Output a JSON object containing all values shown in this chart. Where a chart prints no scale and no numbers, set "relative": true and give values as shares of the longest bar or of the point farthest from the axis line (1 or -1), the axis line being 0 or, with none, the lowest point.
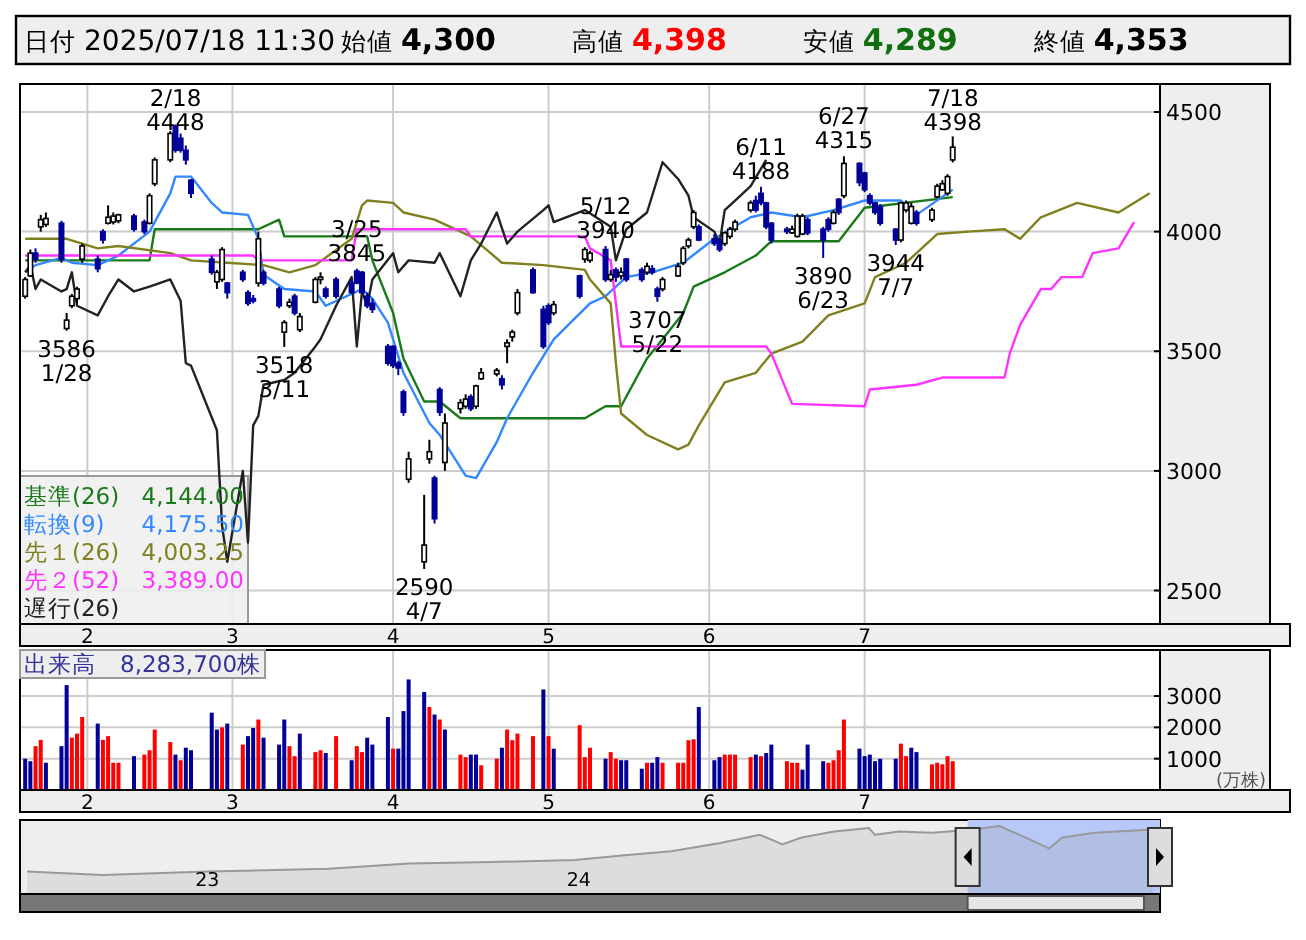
{
  "chart_data": [
    {
      "type": "other",
      "annotations": [
        "日付",
        "2025/07/18 11:30",
        "始値",
        "4,300",
        "高値",
        "4,398",
        "安値",
        "4,289",
        "終値",
        "4,353"
      ],
      "colors": [
        "#000000",
        "#000000",
        "#000000",
        "#000000",
        "#000000",
        "#ff0000",
        "#000000",
        "#107010",
        "#000000",
        "#000000"
      ]
    },
    {
      "type": "candlestick",
      "xlim": [
        "2025-01-19",
        "2025-08-27"
      ],
      "ylim": [
        2360,
        4617
      ],
      "grid": true,
      "legend": "bottom left",
      "xticks": [
        {
          "value": "2025-02-01",
          "label": "2"
        },
        {
          "value": "2025-03-01",
          "label": "3"
        },
        {
          "value": "2025-04-01",
          "label": "4"
        },
        {
          "value": "2025-05-01",
          "label": "5"
        },
        {
          "value": "2025-06-01",
          "label": "6"
        },
        {
          "value": "2025-07-01",
          "label": "7"
        }
      ],
      "yticks": [
        2500,
        3000,
        3500,
        4000,
        4500
      ],
      "x": [
        "2025-01-20",
        "2025-01-21",
        "2025-01-22",
        "2025-01-23",
        "2025-01-24",
        "2025-01-27",
        "2025-01-28",
        "2025-01-29",
        "2025-01-30",
        "2025-01-31",
        "2025-02-03",
        "2025-02-04",
        "2025-02-05",
        "2025-02-06",
        "2025-02-07",
        "2025-02-10",
        "2025-02-12",
        "2025-02-13",
        "2025-02-14",
        "2025-02-17",
        "2025-02-18",
        "2025-02-19",
        "2025-02-20",
        "2025-02-21",
        "2025-02-25",
        "2025-02-26",
        "2025-02-27",
        "2025-02-28",
        "2025-03-03",
        "2025-03-04",
        "2025-03-05",
        "2025-03-06",
        "2025-03-07",
        "2025-03-10",
        "2025-03-11",
        "2025-03-12",
        "2025-03-13",
        "2025-03-14",
        "2025-03-17",
        "2025-03-18",
        "2025-03-19",
        "2025-03-21",
        "2025-03-24",
        "2025-03-25",
        "2025-03-26",
        "2025-03-27",
        "2025-03-28",
        "2025-03-31",
        "2025-04-01",
        "2025-04-02",
        "2025-04-03",
        "2025-04-04",
        "2025-04-07",
        "2025-04-08",
        "2025-04-09",
        "2025-04-10",
        "2025-04-11",
        "2025-04-14",
        "2025-04-15",
        "2025-04-16",
        "2025-04-17",
        "2025-04-18",
        "2025-04-21",
        "2025-04-22",
        "2025-04-23",
        "2025-04-24",
        "2025-04-25",
        "2025-04-28",
        "2025-04-30",
        "2025-05-01",
        "2025-05-02",
        "2025-05-07",
        "2025-05-08",
        "2025-05-09",
        "2025-05-12",
        "2025-05-13",
        "2025-05-14",
        "2025-05-15",
        "2025-05-16",
        "2025-05-19",
        "2025-05-20",
        "2025-05-21",
        "2025-05-22",
        "2025-05-23",
        "2025-05-26",
        "2025-05-27",
        "2025-05-28",
        "2025-05-29",
        "2025-05-30",
        "2025-06-02",
        "2025-06-03",
        "2025-06-04",
        "2025-06-05",
        "2025-06-06",
        "2025-06-09",
        "2025-06-10",
        "2025-06-11",
        "2025-06-12",
        "2025-06-13",
        "2025-06-16",
        "2025-06-17",
        "2025-06-18",
        "2025-06-19",
        "2025-06-20",
        "2025-06-23",
        "2025-06-24",
        "2025-06-25",
        "2025-06-26",
        "2025-06-27",
        "2025-06-30",
        "2025-07-01",
        "2025-07-02",
        "2025-07-03",
        "2025-07-04",
        "2025-07-07",
        "2025-07-08",
        "2025-07-09",
        "2025-07-10",
        "2025-07-11",
        "2025-07-14",
        "2025-07-15",
        "2025-07-16",
        "2025-07-17",
        "2025-07-18"
      ],
      "ohlc": [
        [
          3730,
          3810,
          3720,
          3800
        ],
        [
          3815,
          3925,
          3810,
          3910
        ],
        [
          3910,
          3930,
          3870,
          3885
        ],
        [
          4020,
          4070,
          4000,
          4050
        ],
        [
          4030,
          4080,
          4020,
          4055
        ],
        [
          4035,
          4045,
          3870,
          3885
        ],
        [
          3595,
          3660,
          3586,
          3630
        ],
        [
          3690,
          3740,
          3680,
          3730
        ],
        [
          3720,
          3770,
          3700,
          3760
        ],
        [
          3885,
          3950,
          3870,
          3940
        ],
        [
          3885,
          3900,
          3830,
          3845
        ],
        [
          4000,
          4010,
          3950,
          3965
        ],
        [
          4035,
          4110,
          4030,
          4060
        ],
        [
          4040,
          4080,
          4030,
          4065
        ],
        [
          4045,
          4075,
          4035,
          4070
        ],
        [
          4065,
          4075,
          4000,
          4010
        ],
        [
          4040,
          4050,
          3990,
          4000
        ],
        [
          4035,
          4160,
          4030,
          4150
        ],
        [
          4200,
          4310,
          4190,
          4300
        ],
        [
          4300,
          4420,
          4290,
          4410
        ],
        [
          4440,
          4448,
          4330,
          4340
        ],
        [
          4390,
          4410,
          4330,
          4340
        ],
        [
          4340,
          4360,
          4280,
          4300
        ],
        [
          4215,
          4220,
          4140,
          4160
        ],
        [
          3885,
          3900,
          3820,
          3830
        ],
        [
          3790,
          3840,
          3760,
          3830
        ],
        [
          3800,
          3935,
          3790,
          3925
        ],
        [
          3785,
          3790,
          3720,
          3745
        ],
        [
          3830,
          3840,
          3790,
          3800
        ],
        [
          3745,
          3755,
          3690,
          3700
        ],
        [
          3720,
          3735,
          3700,
          3710
        ],
        [
          3785,
          4000,
          3770,
          3970
        ],
        [
          3830,
          3840,
          3775,
          3785
        ],
        [
          3760,
          3770,
          3680,
          3690
        ],
        [
          3580,
          3630,
          3518,
          3620
        ],
        [
          3690,
          3720,
          3680,
          3705
        ],
        [
          3730,
          3740,
          3650,
          3660
        ],
        [
          3590,
          3660,
          3580,
          3645
        ],
        [
          3705,
          3810,
          3700,
          3800
        ],
        [
          3800,
          3830,
          3780,
          3810
        ],
        [
          3760,
          3770,
          3720,
          3730
        ],
        [
          3800,
          3810,
          3720,
          3730
        ],
        [
          3785,
          3800,
          3740,
          3745
        ],
        [
          3835,
          3845,
          3780,
          3785
        ],
        [
          3830,
          3835,
          3740,
          3745
        ],
        [
          3730,
          3745,
          3680,
          3690
        ],
        [
          3700,
          3720,
          3660,
          3675
        ],
        [
          3520,
          3530,
          3440,
          3450
        ],
        [
          3520,
          3525,
          3430,
          3440
        ],
        [
          3450,
          3460,
          3400,
          3430
        ],
        [
          3330,
          3340,
          3230,
          3245
        ],
        [
          2965,
          3080,
          2950,
          3050
        ],
        [
          2620,
          2900,
          2590,
          2690
        ],
        [
          3050,
          3130,
          3030,
          3080
        ],
        [
          2970,
          2980,
          2780,
          2800
        ],
        [
          3340,
          3350,
          3230,
          3245
        ],
        [
          3035,
          3240,
          3000,
          3200
        ],
        [
          3260,
          3300,
          3240,
          3285
        ],
        [
          3270,
          3320,
          3260,
          3300
        ],
        [
          3310,
          3320,
          3250,
          3260
        ],
        [
          3270,
          3360,
          3260,
          3355
        ],
        [
          3385,
          3430,
          3380,
          3410
        ],
        [
          3405,
          3430,
          3395,
          3420
        ],
        [
          3385,
          3400,
          3340,
          3360
        ],
        [
          3520,
          3550,
          3450,
          3535
        ],
        [
          3560,
          3590,
          3540,
          3580
        ],
        [
          3660,
          3760,
          3650,
          3745
        ],
        [
          3840,
          3850,
          3740,
          3745
        ],
        [
          3675,
          3690,
          3510,
          3520
        ],
        [
          3690,
          3700,
          3610,
          3620
        ],
        [
          3660,
          3710,
          3650,
          3695
        ],
        [
          3815,
          3820,
          3720,
          3730
        ],
        [
          3885,
          3935,
          3870,
          3925
        ],
        [
          3880,
          3920,
          3870,
          3910
        ],
        [
          3925,
          3940,
          3790,
          3800
        ],
        [
          3800,
          3840,
          3790,
          3820
        ],
        [
          3840,
          3850,
          3790,
          3810
        ],
        [
          3815,
          3850,
          3800,
          3830
        ],
        [
          3885,
          3890,
          3790,
          3800
        ],
        [
          3840,
          3850,
          3790,
          3800
        ],
        [
          3830,
          3870,
          3820,
          3855
        ],
        [
          3845,
          3860,
          3820,
          3830
        ],
        [
          3760,
          3770,
          3707,
          3730
        ],
        [
          3760,
          3810,
          3750,
          3800
        ],
        [
          3815,
          3870,
          3810,
          3855
        ],
        [
          3870,
          3940,
          3860,
          3930
        ],
        [
          3940,
          3975,
          3930,
          3965
        ],
        [
          4020,
          4090,
          4010,
          4080
        ],
        [
          4020,
          4030,
          3960,
          3965
        ],
        [
          3970,
          3990,
          3940,
          3950
        ],
        [
          3965,
          3975,
          3915,
          3925
        ],
        [
          3950,
          4000,
          3940,
          3995
        ],
        [
          3980,
          4020,
          3970,
          4010
        ],
        [
          4010,
          4050,
          4000,
          4040
        ],
        [
          4090,
          4130,
          4080,
          4120
        ],
        [
          4130,
          4150,
          4080,
          4090
        ],
        [
          4160,
          4188,
          4110,
          4120
        ],
        [
          4120,
          4125,
          4010,
          4020
        ],
        [
          4035,
          4040,
          3950,
          3965
        ],
        [
          4010,
          4020,
          3990,
          4000
        ],
        [
          3995,
          4025,
          3990,
          4010
        ],
        [
          3980,
          4075,
          3975,
          4065
        ],
        [
          3990,
          4075,
          3985,
          4065
        ],
        [
          4050,
          4060,
          3985,
          3995
        ],
        [
          4010,
          4020,
          3890,
          3965
        ],
        [
          4050,
          4060,
          4000,
          4010
        ],
        [
          4035,
          4090,
          4030,
          4080
        ],
        [
          4135,
          4140,
          4070,
          4080
        ],
        [
          4150,
          4315,
          4140,
          4285
        ],
        [
          4285,
          4290,
          4190,
          4205
        ],
        [
          4245,
          4250,
          4165,
          4175
        ],
        [
          4150,
          4160,
          4110,
          4120
        ],
        [
          4120,
          4125,
          4070,
          4080
        ],
        [
          4105,
          4115,
          4025,
          4035
        ],
        [
          4010,
          4015,
          3944,
          3965
        ],
        [
          3965,
          4125,
          3955,
          4120
        ],
        [
          4090,
          4130,
          4080,
          4120
        ],
        [
          4035,
          4120,
          4030,
          4105
        ],
        [
          4080,
          4090,
          4025,
          4035
        ],
        [
          4050,
          4100,
          4040,
          4090
        ],
        [
          4145,
          4200,
          4140,
          4190
        ],
        [
          4175,
          4215,
          4170,
          4200
        ],
        [
          4160,
          4240,
          4150,
          4230
        ],
        [
          4300,
          4398,
          4289,
          4353
        ]
      ],
      "series": [
        {
          "name": "基準(26)",
          "type": "line",
          "color": "#1a7a1a",
          "x": [
            "2025-01-20",
            "2025-02-13",
            "2025-02-14",
            "2025-03-06",
            "2025-03-10",
            "2025-03-11",
            "2025-03-27",
            "2025-03-28",
            "2025-04-01",
            "2025-04-03",
            "2025-04-07",
            "2025-04-10",
            "2025-04-14",
            "2025-05-08",
            "2025-05-12",
            "2025-05-15",
            "2025-05-20",
            "2025-05-23",
            "2025-05-27",
            "2025-05-29",
            "2025-06-04",
            "2025-06-10",
            "2025-06-13",
            "2025-06-26",
            "2025-07-01",
            "2025-07-18"
          ],
          "values": [
            3880,
            3880,
            4010,
            4010,
            4050,
            3980,
            3980,
            3880,
            3660,
            3470,
            3290,
            3290,
            3220,
            3220,
            3270,
            3270,
            3470,
            3550,
            3660,
            3770,
            3830,
            3900,
            3960,
            3960,
            4100,
            4144
          ]
        },
        {
          "name": "転換(9)",
          "type": "line",
          "color": "#3388ff",
          "x": [
            "2025-01-20",
            "2025-01-22",
            "2025-01-27",
            "2025-01-29",
            "2025-02-03",
            "2025-02-07",
            "2025-02-13",
            "2025-02-17",
            "2025-02-18",
            "2025-02-21",
            "2025-02-25",
            "2025-02-27",
            "2025-03-04",
            "2025-03-06",
            "2025-03-07",
            "2025-03-11",
            "2025-03-17",
            "2025-03-19",
            "2025-03-26",
            "2025-03-28",
            "2025-03-31",
            "2025-04-03",
            "2025-04-08",
            "2025-04-10",
            "2025-04-15",
            "2025-04-17",
            "2025-04-21",
            "2025-04-23",
            "2025-04-28",
            "2025-05-02",
            "2025-05-09",
            "2025-05-12",
            "2025-05-16",
            "2025-05-21",
            "2025-05-27",
            "2025-06-02",
            "2025-06-09",
            "2025-06-13",
            "2025-06-19",
            "2025-06-25",
            "2025-07-01",
            "2025-07-08",
            "2025-07-11",
            "2025-07-18"
          ],
          "values": [
            3830,
            3860,
            3890,
            3870,
            3860,
            3900,
            4000,
            4160,
            4230,
            4230,
            4120,
            4080,
            4070,
            3970,
            3820,
            3760,
            3750,
            3690,
            3760,
            3720,
            3620,
            3410,
            3200,
            3150,
            2980,
            2970,
            3120,
            3220,
            3410,
            3550,
            3700,
            3730,
            3810,
            3830,
            3870,
            3970,
            4060,
            4080,
            4060,
            4090,
            4130,
            4130,
            4070,
            4175.5
          ]
        },
        {
          "name": "先１(26)",
          "type": "line",
          "color": "#808020",
          "x": [
            "2025-01-20",
            "2025-01-28",
            "2025-02-03",
            "2025-02-07",
            "2025-02-17",
            "2025-02-21",
            "2025-02-28",
            "2025-03-07",
            "2025-03-12",
            "2025-03-17",
            "2025-03-24",
            "2025-03-26",
            "2025-03-27",
            "2025-04-01",
            "2025-04-03",
            "2025-04-09",
            "2025-04-16",
            "2025-04-22",
            "2025-04-30",
            "2025-05-08",
            "2025-05-09",
            "2025-05-13",
            "2025-05-14",
            "2025-05-15",
            "2025-05-20",
            "2025-05-26",
            "2025-05-28",
            "2025-05-30",
            "2025-06-04",
            "2025-06-10",
            "2025-06-13",
            "2025-06-19",
            "2025-06-24",
            "2025-07-01",
            "2025-07-03",
            "2025-07-09",
            "2025-07-15",
            "2025-07-21",
            "2025-07-28",
            "2025-07-31",
            "2025-08-04",
            "2025-08-11",
            "2025-08-19",
            "2025-08-25"
          ],
          "values": [
            3970,
            3970,
            3930,
            3940,
            3910,
            3880,
            3870,
            3860,
            3830,
            3860,
            3970,
            4110,
            4130,
            4120,
            4080,
            4050,
            3980,
            3870,
            3860,
            3840,
            3800,
            3700,
            3450,
            3240,
            3150,
            3090,
            3110,
            3190,
            3370,
            3410,
            3490,
            3540,
            3650,
            3700,
            3810,
            3870,
            3990,
            4000,
            4010,
            3970,
            4060,
            4120,
            4080,
            4160
          ]
        },
        {
          "name": "先２(52)",
          "type": "line",
          "color": "#ff33ff",
          "x": [
            "2025-01-20",
            "2025-03-05",
            "2025-03-06",
            "2025-03-24",
            "2025-03-25",
            "2025-04-15",
            "2025-04-16",
            "2025-05-08",
            "2025-05-09",
            "2025-05-13",
            "2025-05-14",
            "2025-05-15",
            "2025-06-12",
            "2025-06-13",
            "2025-06-17",
            "2025-07-01",
            "2025-07-02",
            "2025-07-11",
            "2025-07-16",
            "2025-07-28",
            "2025-07-29",
            "2025-07-31",
            "2025-08-04",
            "2025-08-06",
            "2025-08-08",
            "2025-08-12",
            "2025-08-14",
            "2025-08-19",
            "2025-08-22"
          ],
          "values": [
            3900,
            3900,
            3880,
            3880,
            4010,
            4010,
            3980,
            3980,
            3930,
            3880,
            3700,
            3520,
            3520,
            3490,
            3280,
            3270,
            3340,
            3360,
            3390,
            3390,
            3490,
            3610,
            3760,
            3760,
            3810,
            3810,
            3910,
            3930,
            4040
          ]
        },
        {
          "name": "遅行(26)",
          "type": "line",
          "color": "#222222",
          "x": [
            "2025-01-20",
            "2025-01-21",
            "2025-01-22",
            "2025-01-23",
            "2025-01-27",
            "2025-01-28",
            "2025-01-29",
            "2025-01-30",
            "2025-02-03",
            "2025-02-05",
            "2025-02-07",
            "2025-02-10",
            "2025-02-13",
            "2025-02-17",
            "2025-02-19",
            "2025-02-20",
            "2025-02-21",
            "2025-02-26",
            "2025-02-27",
            "2025-02-28",
            "2025-03-03",
            "2025-03-04",
            "2025-03-05",
            "2025-03-06",
            "2025-03-07",
            "2025-03-11",
            "2025-03-13",
            "2025-03-17",
            "2025-03-18",
            "2025-03-21",
            "2025-03-24",
            "2025-03-25",
            "2025-03-26",
            "2025-03-27",
            "2025-03-28",
            "2025-04-01",
            "2025-04-02",
            "2025-04-04",
            "2025-04-09",
            "2025-04-10",
            "2025-04-14",
            "2025-04-16",
            "2025-04-18",
            "2025-04-21",
            "2025-04-23",
            "2025-04-25",
            "2025-04-30",
            "2025-05-01",
            "2025-05-02",
            "2025-05-08",
            "2025-05-13",
            "2025-05-14",
            "2025-05-16",
            "2025-05-20",
            "2025-05-23",
            "2025-05-26",
            "2025-05-28",
            "2025-05-29",
            "2025-06-02",
            "2025-06-03",
            "2025-06-04",
            "2025-06-06",
            "2025-06-09",
            "2025-06-12"
          ],
          "values": [
            3830,
            3860,
            3760,
            3800,
            3750,
            3760,
            3830,
            3690,
            3650,
            3730,
            3800,
            3750,
            3770,
            3800,
            3710,
            3450,
            3440,
            3170,
            2770,
            2620,
            3000,
            2700,
            3190,
            3230,
            3360,
            3380,
            3410,
            3520,
            3550,
            3690,
            3810,
            3520,
            3750,
            3690,
            3800,
            3910,
            3830,
            3880,
            3870,
            3910,
            3730,
            3880,
            3950,
            4080,
            3950,
            4000,
            4090,
            4110,
            4040,
            4090,
            4020,
            3880,
            4010,
            4080,
            4290,
            4220,
            4150,
            4060,
            4000,
            3950,
            4090,
            4130,
            4190,
            4300
          ]
        }
      ],
      "annotations": [
        {
          "text": "2/18\n4448",
          "x": "2025-02-18",
          "y": 4448
        },
        {
          "text": "3586\n1/28",
          "x": "2025-01-28",
          "y": 3586
        },
        {
          "text": "3518\n3/11",
          "x": "2025-03-11",
          "y": 3518
        },
        {
          "text": "3/25\n3845",
          "x": "2025-03-25",
          "y": 3845
        },
        {
          "text": "2590\n4/7",
          "x": "2025-04-07",
          "y": 2590
        },
        {
          "text": "5/12\n3940",
          "x": "2025-05-12",
          "y": 3940
        },
        {
          "text": "3707\n5/22",
          "x": "2025-05-22",
          "y": 3707
        },
        {
          "text": "6/11\n4188",
          "x": "2025-06-11",
          "y": 4188
        },
        {
          "text": "3890\n6/23",
          "x": "2025-06-23",
          "y": 3890
        },
        {
          "text": "6/27\n4315",
          "x": "2025-06-27",
          "y": 4315
        },
        {
          "text": "3944\n7/7",
          "x": "2025-07-07",
          "y": 3944
        },
        {
          "text": "7/18\n4398",
          "x": "2025-07-18",
          "y": 4398
        },
        "4,144.00",
        "4,175.50",
        "4,003.25",
        "3,389.00"
      ]
    },
    {
      "type": "bar",
      "title": "出来高　8,283,700株",
      "ylabel": "(万株)",
      "xlim": [
        "2025-01-19",
        "2025-08-27"
      ],
      "ylim": [
        0,
        4470
      ],
      "grid": true,
      "xticks": [
        {
          "value": "2025-02-01",
          "label": "2"
        },
        {
          "value": "2025-03-01",
          "label": "3"
        },
        {
          "value": "2025-04-01",
          "label": "4"
        },
        {
          "value": "2025-05-01",
          "label": "5"
        },
        {
          "value": "2025-06-01",
          "label": "6"
        },
        {
          "value": "2025-07-01",
          "label": "7"
        }
      ],
      "yticks": [
        1000,
        2000,
        3000
      ],
      "x": [
        "2025-01-20",
        "2025-01-21",
        "2025-01-22",
        "2025-01-23",
        "2025-01-24",
        "2025-01-27",
        "2025-01-28",
        "2025-01-29",
        "2025-01-30",
        "2025-01-31",
        "2025-02-03",
        "2025-02-04",
        "2025-02-05",
        "2025-02-06",
        "2025-02-07",
        "2025-02-10",
        "2025-02-12",
        "2025-02-13",
        "2025-02-14",
        "2025-02-17",
        "2025-02-18",
        "2025-02-19",
        "2025-02-20",
        "2025-02-21",
        "2025-02-25",
        "2025-02-26",
        "2025-02-27",
        "2025-02-28",
        "2025-03-03",
        "2025-03-04",
        "2025-03-05",
        "2025-03-06",
        "2025-03-07",
        "2025-03-10",
        "2025-03-11",
        "2025-03-12",
        "2025-03-13",
        "2025-03-14",
        "2025-03-17",
        "2025-03-18",
        "2025-03-19",
        "2025-03-21",
        "2025-03-24",
        "2025-03-25",
        "2025-03-26",
        "2025-03-27",
        "2025-03-28",
        "2025-03-31",
        "2025-04-01",
        "2025-04-02",
        "2025-04-03",
        "2025-04-04",
        "2025-04-07",
        "2025-04-08",
        "2025-04-09",
        "2025-04-10",
        "2025-04-11",
        "2025-04-14",
        "2025-04-15",
        "2025-04-16",
        "2025-04-17",
        "2025-04-18",
        "2025-04-21",
        "2025-04-22",
        "2025-04-23",
        "2025-04-24",
        "2025-04-25",
        "2025-04-28",
        "2025-04-30",
        "2025-05-01",
        "2025-05-02",
        "2025-05-07",
        "2025-05-08",
        "2025-05-09",
        "2025-05-12",
        "2025-05-13",
        "2025-05-14",
        "2025-05-15",
        "2025-05-16",
        "2025-05-19",
        "2025-05-20",
        "2025-05-21",
        "2025-05-22",
        "2025-05-23",
        "2025-05-26",
        "2025-05-27",
        "2025-05-28",
        "2025-05-29",
        "2025-05-30",
        "2025-06-02",
        "2025-06-03",
        "2025-06-04",
        "2025-06-05",
        "2025-06-06",
        "2025-06-09",
        "2025-06-10",
        "2025-06-11",
        "2025-06-12",
        "2025-06-13",
        "2025-06-16",
        "2025-06-17",
        "2025-06-18",
        "2025-06-19",
        "2025-06-20",
        "2025-06-23",
        "2025-06-24",
        "2025-06-25",
        "2025-06-26",
        "2025-06-27",
        "2025-06-30",
        "2025-07-01",
        "2025-07-02",
        "2025-07-03",
        "2025-07-04",
        "2025-07-07",
        "2025-07-08",
        "2025-07-09",
        "2025-07-10",
        "2025-07-11",
        "2025-07-14",
        "2025-07-15",
        "2025-07-16",
        "2025-07-17",
        "2025-07-18"
      ],
      "values": [
        1000,
        920,
        1400,
        1600,
        870,
        1400,
        3350,
        1670,
        1800,
        2330,
        2120,
        1600,
        1720,
        870,
        870,
        1080,
        1130,
        1270,
        1930,
        1530,
        1130,
        950,
        1350,
        1270,
        2470,
        1930,
        2000,
        2120,
        1450,
        1720,
        1980,
        2250,
        1670,
        1450,
        2250,
        1400,
        1080,
        1800,
        1210,
        1270,
        1180,
        1720,
        950,
        1400,
        1210,
        1670,
        1450,
        2330,
        1320,
        1320,
        2520,
        3530,
        3130,
        2650,
        2410,
        2250,
        1930,
        1130,
        1050,
        1130,
        1130,
        790,
        1000,
        1350,
        1930,
        1590,
        1800,
        1720,
        3210,
        1720,
        1320,
        2070,
        1050,
        1350,
        1000,
        1210,
        1000,
        950,
        950,
        680,
        870,
        870,
        1050,
        870,
        870,
        870,
        1590,
        1620,
        2650,
        950,
        1050,
        1130,
        1130,
        1130,
        1050,
        1130,
        1080,
        1180,
        1450,
        920,
        870,
        870,
        650,
        1450,
        920,
        870,
        950,
        1270,
        2250,
        1320,
        1080,
        1130,
        920,
        1000,
        1000,
        1480,
        1080,
        1350,
        1210,
        820,
        870,
        820,
        1080,
        920
      ],
      "colors": [
        "#000099",
        "#000099",
        "#ff0000",
        "#ff0000",
        "#000099",
        "#000099",
        "#000099",
        "#ff0000",
        "#ff0000",
        "#ff0000",
        "#000099",
        "#ff0000",
        "#ff0000",
        "#ff0000",
        "#ff0000",
        "#000099",
        "#ff0000",
        "#ff0000",
        "#ff0000",
        "#ff0000",
        "#000099",
        "#ff0000",
        "#000099",
        "#000099",
        "#000099",
        "#000099",
        "#ff0000",
        "#000099",
        "#ff0000",
        "#000099",
        "#000099",
        "#ff0000",
        "#000099",
        "#000099",
        "#000099",
        "#ff0000",
        "#ff0000",
        "#000099",
        "#ff0000",
        "#ff0000",
        "#000099",
        "#ff0000",
        "#000099",
        "#ff0000",
        "#ff0000",
        "#000099",
        "#000099",
        "#000099",
        "#ff0000",
        "#000099",
        "#000099",
        "#000099",
        "#000099",
        "#ff0000",
        "#000099",
        "#ff0000",
        "#000099",
        "#ff0000",
        "#ff0000",
        "#000099",
        "#000099",
        "#ff0000",
        "#ff0000",
        "#000099",
        "#ff0000",
        "#ff0000",
        "#ff0000",
        "#ff0000",
        "#000099",
        "#ff0000",
        "#000099",
        "#ff0000",
        "#ff0000",
        "#ff0000",
        "#000099",
        "#ff0000",
        "#ff0000",
        "#000099",
        "#000099",
        "#000099",
        "#ff0000",
        "#000099",
        "#000099",
        "#ff0000",
        "#ff0000",
        "#ff0000",
        "#ff0000",
        "#ff0000",
        "#000099",
        "#000099",
        "#000099",
        "#ff0000",
        "#ff0000",
        "#ff0000",
        "#ff0000",
        "#000099",
        "#ff0000",
        "#000099",
        "#000099",
        "#ff0000",
        "#ff0000",
        "#ff0000",
        "#000099",
        "#000099",
        "#000099",
        "#ff0000",
        "#ff0000",
        "#ff0000",
        "#ff0000",
        "#000099",
        "#000099",
        "#000099",
        "#000099",
        "#000099",
        "#000099",
        "#ff0000",
        "#ff0000",
        "#000099",
        "#000099",
        "#ff0000",
        "#ff0000",
        "#ff0000",
        "#ff0000",
        "#ff0000"
      ]
    },
    {
      "type": "area",
      "relative": true,
      "color": "#999999",
      "xlim": [
        "2022-07-01",
        "2025-07-25"
      ],
      "xticks": [
        {
          "value": "2023-01-01",
          "label": "23"
        },
        {
          "value": "2024-01-01",
          "label": "24"
        }
      ],
      "bands": [
        {
          "axis": "x",
          "from": "2025-01-17",
          "to": "2025-07-25",
          "color": "#b8c8f8"
        }
      ],
      "x": [
        "2022-07-08",
        "2022-09-20",
        "2023-01-01",
        "2023-04-30",
        "2023-07-18",
        "2023-10-08",
        "2023-12-28",
        "2024-02-15",
        "2024-04-01",
        "2024-05-19",
        "2024-06-27",
        "2024-07-19",
        "2024-08-07",
        "2024-09-08",
        "2024-10-12",
        "2024-10-18",
        "2024-11-11",
        "2024-12-13",
        "2025-01-23",
        "2025-02-17",
        "2025-03-15",
        "2025-04-07",
        "2025-04-20",
        "2025-05-22",
        "2025-07-18"
      ],
      "values": [
        0.33,
        0.28,
        0.33,
        0.37,
        0.45,
        0.47,
        0.5,
        0.57,
        0.63,
        0.75,
        0.87,
        0.73,
        0.83,
        0.92,
        0.97,
        0.87,
        0.92,
        0.9,
        0.95,
        1,
        0.83,
        0.67,
        0.83,
        0.9,
        0.95
      ]
    }
  ]
}
